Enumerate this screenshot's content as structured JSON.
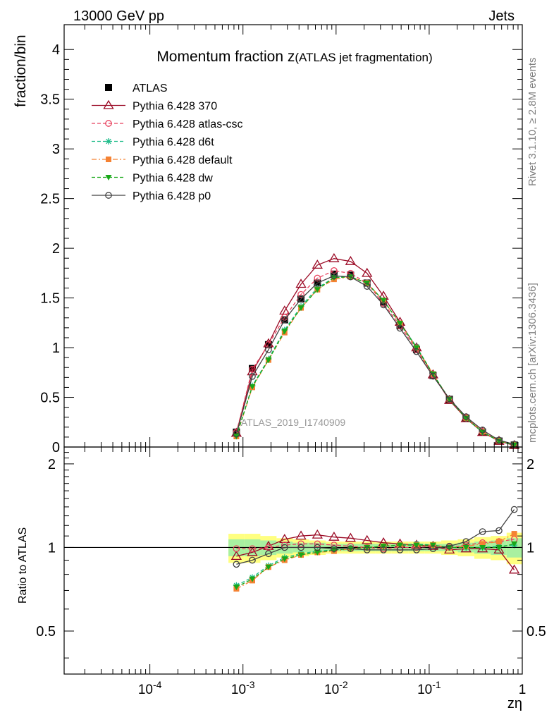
{
  "header": {
    "left": "13000 GeV pp",
    "right": "Jets"
  },
  "side_labels": {
    "rivet": "Rivet 3.1.10, ≥ 2.8M events",
    "mcplots": "mcplots.cern.ch [arXiv:1306.3436]"
  },
  "watermark": "ATLAS_2019_I1740909",
  "chart_data": {
    "type": "line",
    "title": "Momentum fraction z",
    "title_suffix": "(ATLAS jet fragmentation)",
    "xlabel": "zη",
    "ylabel": "fraction/bin",
    "ratio_ylabel": "Ratio to ATLAS",
    "xscale": "log",
    "xlim": [
      1.2e-05,
      1.0
    ],
    "ylim": [
      0,
      4.25
    ],
    "ratio_ylim": [
      0.35,
      2.3
    ],
    "x_tick_labels": [
      "10^-4",
      "10^-3",
      "10^-2",
      "10^-1",
      "1"
    ],
    "y_tick_labels": [
      "0",
      "0.5",
      "1",
      "1.5",
      "2",
      "2.5",
      "3",
      "3.5",
      "4"
    ],
    "ratio_tick_labels": [
      "0.5",
      "1",
      "2"
    ],
    "legend_position": "top-left",
    "x": [
      0.00085,
      0.00126,
      0.00188,
      0.0028,
      0.0042,
      0.0063,
      0.0095,
      0.0143,
      0.0215,
      0.0323,
      0.0486,
      0.0731,
      0.11,
      0.165,
      0.249,
      0.374,
      0.562,
      0.82
    ],
    "data": {
      "name": "ATLAS",
      "values": [
        0.15,
        0.79,
        1.03,
        1.28,
        1.49,
        1.65,
        1.74,
        1.73,
        1.65,
        1.46,
        1.22,
        0.98,
        0.72,
        0.48,
        0.29,
        0.15,
        0.06,
        0.02
      ],
      "band_inner": [
        0.07,
        0.07,
        0.06,
        0.05,
        0.04,
        0.04,
        0.03,
        0.03,
        0.03,
        0.03,
        0.03,
        0.03,
        0.03,
        0.03,
        0.04,
        0.05,
        0.06,
        0.08
      ],
      "band_outer": [
        0.12,
        0.12,
        0.1,
        0.08,
        0.07,
        0.06,
        0.05,
        0.05,
        0.05,
        0.05,
        0.05,
        0.05,
        0.05,
        0.06,
        0.07,
        0.09,
        0.1,
        0.13
      ]
    },
    "series": [
      {
        "name": "Pythia 6.428 370",
        "color": "#9b0a25",
        "dash": "solid",
        "marker": "triangle-open",
        "ratio": [
          0.93,
          0.96,
          1.01,
          1.07,
          1.1,
          1.11,
          1.09,
          1.08,
          1.06,
          1.04,
          1.03,
          1.02,
          1.01,
          0.98,
          0.99,
          0.99,
          0.98,
          0.83
        ]
      },
      {
        "name": "Pythia 6.428 atlas-csc",
        "color": "#e8415d",
        "dash": "dashed",
        "marker": "circle-open",
        "ratio": [
          0.99,
          0.99,
          1.0,
          1.02,
          1.03,
          1.03,
          1.02,
          1.01,
          1.0,
          0.99,
          1.0,
          1.0,
          1.01,
          1.0,
          1.02,
          1.04,
          1.05,
          1.07
        ]
      },
      {
        "name": "Pythia 6.428 d6t",
        "color": "#1ebc8a",
        "dash": "dashed",
        "marker": "star",
        "ratio": [
          0.73,
          0.78,
          0.86,
          0.92,
          0.95,
          0.97,
          0.98,
          0.99,
          1.0,
          1.01,
          1.02,
          1.03,
          1.02,
          1.0,
          1.0,
          1.0,
          1.01,
          1.02
        ]
      },
      {
        "name": "Pythia 6.428 default",
        "color": "#f58233",
        "dash": "dashdot",
        "marker": "square",
        "ratio": [
          0.71,
          0.76,
          0.85,
          0.9,
          0.94,
          0.96,
          0.97,
          0.99,
          1.0,
          1.01,
          1.02,
          1.02,
          1.02,
          1.0,
          1.01,
          1.03,
          1.05,
          1.12
        ]
      },
      {
        "name": "Pythia 6.428 dw",
        "color": "#18a818",
        "dash": "dashed",
        "marker": "triangle-down",
        "ratio": [
          0.72,
          0.77,
          0.85,
          0.91,
          0.94,
          0.96,
          0.98,
          0.99,
          1.0,
          1.01,
          1.02,
          1.02,
          1.02,
          1.0,
          1.0,
          1.0,
          1.0,
          1.03
        ]
      },
      {
        "name": "Pythia 6.428 p0",
        "color": "#404040",
        "dash": "solid",
        "marker": "circle-open",
        "ratio": [
          0.87,
          0.9,
          0.95,
          1.0,
          1.0,
          1.0,
          0.99,
          0.99,
          0.98,
          0.98,
          0.98,
          0.98,
          0.99,
          1.01,
          1.05,
          1.14,
          1.15,
          1.37
        ]
      }
    ]
  }
}
